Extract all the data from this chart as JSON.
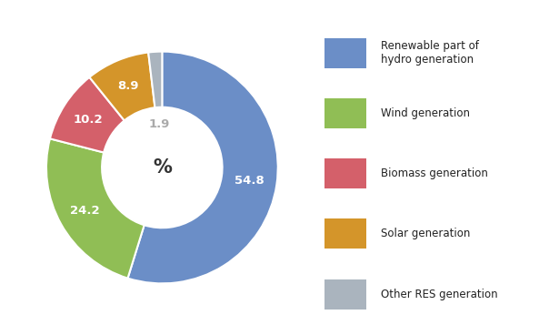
{
  "labels": [
    "Renewable part of\nhydro generation",
    "Wind generation",
    "Biomass generation",
    "Solar generation",
    "Other RES generation"
  ],
  "values": [
    54.8,
    24.2,
    10.2,
    8.9,
    1.9
  ],
  "colors": [
    "#6b8ec7",
    "#90be55",
    "#d4606a",
    "#d4952a",
    "#aab4be"
  ],
  "text_labels": [
    "54.8",
    "24.2",
    "10.2",
    "8.9",
    "1.9"
  ],
  "text_colors": [
    "white",
    "white",
    "white",
    "white",
    "#aaaaaa"
  ],
  "center_text": "%",
  "center_text_color": "#333333",
  "background_color": "#ffffff",
  "legend_colors": [
    "#6b8ec7",
    "#90be55",
    "#d4606a",
    "#d4952a",
    "#aab4be"
  ]
}
